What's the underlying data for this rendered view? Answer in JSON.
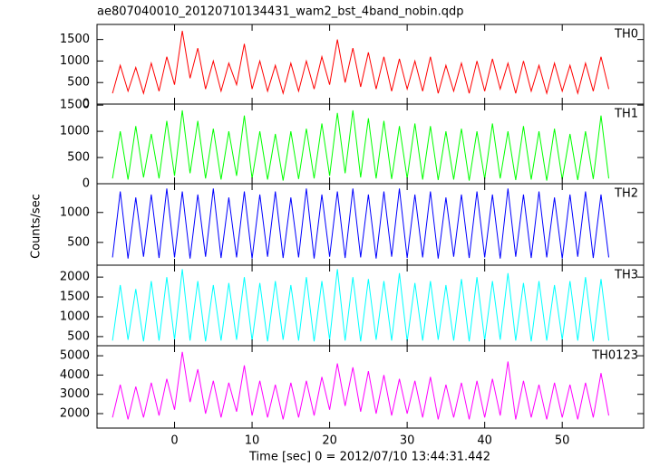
{
  "chart_data": [
    {
      "type": "line",
      "title": "ae807040010_20120710134431_wam2_bst_4band_nobin.qdp",
      "x": [
        -8,
        -7,
        -6,
        -5,
        -4,
        -3,
        -2,
        -1,
        0,
        1,
        2,
        3,
        4,
        5,
        6,
        7,
        8,
        9,
        10,
        11,
        12,
        13,
        14,
        15,
        16,
        17,
        18,
        19,
        20,
        21,
        22,
        23,
        24,
        25,
        26,
        27,
        28,
        29,
        30,
        31,
        32,
        33,
        34,
        35,
        36,
        37,
        38,
        39,
        40,
        41,
        42,
        43,
        44,
        45,
        46,
        47,
        48,
        49,
        50,
        51,
        52,
        53,
        54,
        55,
        56
      ],
      "series": [
        {
          "name": "TH0",
          "color": "#ff0000",
          "values": [
            250,
            900,
            300,
            850,
            250,
            950,
            300,
            1100,
            450,
            1700,
            600,
            1300,
            350,
            1000,
            300,
            950,
            450,
            1400,
            350,
            1000,
            300,
            900,
            250,
            950,
            300,
            1000,
            350,
            1100,
            450,
            1500,
            500,
            1300,
            400,
            1200,
            350,
            1100,
            300,
            1050,
            350,
            1000,
            300,
            1100,
            250,
            900,
            300,
            950,
            250,
            1000,
            300,
            1050,
            350,
            950,
            250,
            1000,
            300,
            900,
            250,
            950,
            300,
            900,
            250,
            950,
            300,
            1100,
            350
          ]
        }
      ],
      "xlim": [
        -10,
        60.5
      ],
      "xticks": [
        0,
        10,
        20,
        30,
        40,
        50
      ],
      "ylim": [
        0,
        1850
      ],
      "yticks": [
        0,
        500,
        1000,
        1500
      ]
    },
    {
      "type": "line",
      "x": [
        -8,
        -7,
        -6,
        -5,
        -4,
        -3,
        -2,
        -1,
        0,
        1,
        2,
        3,
        4,
        5,
        6,
        7,
        8,
        9,
        10,
        11,
        12,
        13,
        14,
        15,
        16,
        17,
        18,
        19,
        20,
        21,
        22,
        23,
        24,
        25,
        26,
        27,
        28,
        29,
        30,
        31,
        32,
        33,
        34,
        35,
        36,
        37,
        38,
        39,
        40,
        41,
        42,
        43,
        44,
        45,
        46,
        47,
        48,
        49,
        50,
        51,
        52,
        53,
        54,
        55,
        56
      ],
      "series": [
        {
          "name": "TH1",
          "color": "#00ff00",
          "values": [
            100,
            1000,
            80,
            1100,
            120,
            950,
            100,
            1200,
            150,
            1400,
            200,
            1200,
            100,
            1050,
            80,
            1000,
            150,
            1300,
            100,
            1000,
            80,
            950,
            60,
            1000,
            90,
            1050,
            100,
            1150,
            150,
            1350,
            200,
            1400,
            120,
            1250,
            100,
            1200,
            90,
            1100,
            100,
            1150,
            80,
            1100,
            70,
            1000,
            80,
            1050,
            60,
            1000,
            90,
            1150,
            100,
            1000,
            70,
            1100,
            80,
            1000,
            60,
            1050,
            80,
            950,
            70,
            1000,
            90,
            1300,
            100
          ]
        }
      ],
      "xlim": [
        -10,
        60.5
      ],
      "xticks": [
        0,
        10,
        20,
        30,
        40,
        50
      ],
      "ylim": [
        0,
        1520
      ],
      "yticks": [
        0,
        500,
        1000,
        1500
      ]
    },
    {
      "type": "line",
      "x": [
        -8,
        -7,
        -6,
        -5,
        -4,
        -3,
        -2,
        -1,
        0,
        1,
        2,
        3,
        4,
        5,
        6,
        7,
        8,
        9,
        10,
        11,
        12,
        13,
        14,
        15,
        16,
        17,
        18,
        19,
        20,
        21,
        22,
        23,
        24,
        25,
        26,
        27,
        28,
        29,
        30,
        31,
        32,
        33,
        34,
        35,
        36,
        37,
        38,
        39,
        40,
        41,
        42,
        43,
        44,
        45,
        46,
        47,
        48,
        49,
        50,
        51,
        52,
        53,
        54,
        55,
        56
      ],
      "series": [
        {
          "name": "TH2",
          "color": "#0000ff",
          "values": [
            250,
            1350,
            230,
            1250,
            260,
            1300,
            240,
            1400,
            250,
            1350,
            230,
            1300,
            260,
            1400,
            240,
            1250,
            250,
            1350,
            230,
            1300,
            260,
            1350,
            240,
            1250,
            250,
            1400,
            230,
            1300,
            260,
            1350,
            240,
            1400,
            250,
            1300,
            230,
            1350,
            260,
            1400,
            240,
            1300,
            250,
            1350,
            230,
            1250,
            260,
            1300,
            240,
            1350,
            250,
            1300,
            230,
            1400,
            260,
            1300,
            240,
            1350,
            250,
            1250,
            230,
            1300,
            260,
            1350,
            240,
            1300,
            250
          ]
        }
      ],
      "xlim": [
        -10,
        60.5
      ],
      "xticks": [
        0,
        10,
        20,
        30,
        40,
        50
      ],
      "ylim": [
        120,
        1480
      ],
      "yticks": [
        500,
        1000
      ]
    },
    {
      "type": "line",
      "x": [
        -8,
        -7,
        -6,
        -5,
        -4,
        -3,
        -2,
        -1,
        0,
        1,
        2,
        3,
        4,
        5,
        6,
        7,
        8,
        9,
        10,
        11,
        12,
        13,
        14,
        15,
        16,
        17,
        18,
        19,
        20,
        21,
        22,
        23,
        24,
        25,
        26,
        27,
        28,
        29,
        30,
        31,
        32,
        33,
        34,
        35,
        36,
        37,
        38,
        39,
        40,
        41,
        42,
        43,
        44,
        45,
        46,
        47,
        48,
        49,
        50,
        51,
        52,
        53,
        54,
        55,
        56
      ],
      "series": [
        {
          "name": "TH3",
          "color": "#00ffff",
          "values": [
            400,
            1800,
            420,
            1700,
            380,
            1900,
            400,
            2000,
            420,
            2200,
            400,
            1900,
            380,
            1800,
            400,
            1850,
            420,
            2000,
            400,
            1850,
            380,
            1900,
            420,
            1800,
            400,
            2000,
            380,
            1900,
            420,
            2200,
            400,
            2000,
            380,
            1950,
            420,
            1900,
            400,
            2100,
            380,
            1850,
            400,
            1900,
            420,
            1800,
            400,
            1950,
            380,
            2000,
            400,
            1900,
            420,
            2100,
            400,
            1850,
            380,
            1900,
            400,
            1800,
            420,
            1900,
            400,
            2000,
            380,
            1950,
            400
          ]
        }
      ],
      "xlim": [
        -10,
        60.5
      ],
      "xticks": [
        0,
        10,
        20,
        30,
        40,
        50
      ],
      "ylim": [
        270,
        2300
      ],
      "yticks": [
        500,
        1000,
        1500,
        2000
      ]
    },
    {
      "type": "line",
      "xlabel": "Time [sec] 0 = 2012/07/10 13:44:31.442",
      "ylabel": "Counts/sec",
      "x": [
        -8,
        -7,
        -6,
        -5,
        -4,
        -3,
        -2,
        -1,
        0,
        1,
        2,
        3,
        4,
        5,
        6,
        7,
        8,
        9,
        10,
        11,
        12,
        13,
        14,
        15,
        16,
        17,
        18,
        19,
        20,
        21,
        22,
        23,
        24,
        25,
        26,
        27,
        28,
        29,
        30,
        31,
        32,
        33,
        34,
        35,
        36,
        37,
        38,
        39,
        40,
        41,
        42,
        43,
        44,
        45,
        46,
        47,
        48,
        49,
        50,
        51,
        52,
        53,
        54,
        55,
        56
      ],
      "series": [
        {
          "name": "TH0123",
          "color": "#ff00ff",
          "values": [
            1800,
            3500,
            1700,
            3400,
            1800,
            3600,
            1900,
            3800,
            2200,
            5200,
            2600,
            4300,
            2000,
            3700,
            1800,
            3600,
            2100,
            4500,
            1900,
            3700,
            1800,
            3500,
            1700,
            3600,
            1800,
            3700,
            1900,
            3900,
            2200,
            4600,
            2400,
            4400,
            2100,
            4200,
            2000,
            4000,
            1900,
            3800,
            2000,
            3700,
            1800,
            3900,
            1700,
            3500,
            1800,
            3600,
            1700,
            3700,
            1800,
            3800,
            1900,
            4700,
            1700,
            3700,
            1800,
            3500,
            1700,
            3600,
            1800,
            3500,
            1700,
            3600,
            1800,
            4100,
            1900
          ]
        }
      ],
      "xlim": [
        -10,
        60.5
      ],
      "xticks": [
        0,
        10,
        20,
        30,
        40,
        50
      ],
      "ylim": [
        1250,
        5520
      ],
      "yticks": [
        2000,
        3000,
        4000,
        5000
      ]
    }
  ]
}
